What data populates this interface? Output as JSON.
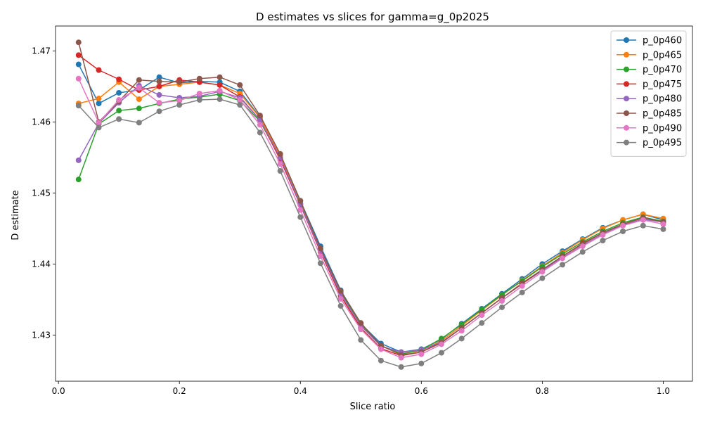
{
  "chart_data": {
    "type": "line",
    "title": "D estimates vs slices for gamma=g_0p2025",
    "xlabel": "Slice ratio",
    "ylabel": "D estimate",
    "xlim": [
      -0.0048,
      1.0483
    ],
    "ylim": [
      1.4235,
      1.4735
    ],
    "xticks": [
      0.0,
      0.2,
      0.4,
      0.6,
      0.8,
      1.0
    ],
    "xtick_labels": [
      "0.0",
      "0.2",
      "0.4",
      "0.6",
      "0.8",
      "1.0"
    ],
    "yticks": [
      1.43,
      1.44,
      1.45,
      1.46,
      1.47
    ],
    "ytick_labels": [
      "1.43",
      "1.44",
      "1.45",
      "1.46",
      "1.47"
    ],
    "grid": false,
    "legend_position": "top-right",
    "marker": "circle",
    "x": [
      0.0333,
      0.0667,
      0.1,
      0.1333,
      0.1667,
      0.2,
      0.2333,
      0.2667,
      0.3,
      0.3333,
      0.3667,
      0.4,
      0.4333,
      0.4667,
      0.5,
      0.5333,
      0.5667,
      0.6,
      0.6333,
      0.6667,
      0.7,
      0.7333,
      0.7667,
      0.8,
      0.8333,
      0.8667,
      0.9,
      0.9333,
      0.9667,
      1.0
    ],
    "series": [
      {
        "name": "p_0p460",
        "color": "#1f77b4",
        "values": [
          1.4681,
          1.4626,
          1.4641,
          1.4645,
          1.4663,
          1.4655,
          1.4657,
          1.4656,
          1.4643,
          1.4607,
          1.4554,
          1.4489,
          1.4425,
          1.4363,
          1.4316,
          1.4288,
          1.4276,
          1.428,
          1.4294,
          1.4316,
          1.4337,
          1.4358,
          1.4379,
          1.44,
          1.4418,
          1.4435,
          1.4451,
          1.4462,
          1.447,
          1.4462
        ]
      },
      {
        "name": "p_0p465",
        "color": "#ff7f0e",
        "values": [
          1.4626,
          1.4633,
          1.4656,
          1.4632,
          1.465,
          1.4653,
          1.4656,
          1.4652,
          1.464,
          1.4606,
          1.4552,
          1.4485,
          1.442,
          1.436,
          1.4314,
          1.4285,
          1.4274,
          1.4278,
          1.4292,
          1.4313,
          1.4335,
          1.4356,
          1.4377,
          1.4397,
          1.4416,
          1.4434,
          1.445,
          1.4462,
          1.447,
          1.4464
        ]
      },
      {
        "name": "p_0p470",
        "color": "#2ca02c",
        "values": [
          1.4519,
          1.4597,
          1.4616,
          1.4619,
          1.4626,
          1.4632,
          1.4635,
          1.4639,
          1.463,
          1.4601,
          1.4549,
          1.4485,
          1.442,
          1.436,
          1.4314,
          1.4285,
          1.4273,
          1.4279,
          1.4295,
          1.4315,
          1.4336,
          1.4357,
          1.4376,
          1.4396,
          1.4414,
          1.4431,
          1.4446,
          1.4458,
          1.4466,
          1.446
        ]
      },
      {
        "name": "p_0p475",
        "color": "#d62728",
        "values": [
          1.4694,
          1.4673,
          1.466,
          1.4645,
          1.465,
          1.4659,
          1.4656,
          1.4652,
          1.4635,
          1.4603,
          1.4547,
          1.4483,
          1.4417,
          1.4355,
          1.431,
          1.4281,
          1.4271,
          1.4276,
          1.429,
          1.431,
          1.4331,
          1.4352,
          1.4373,
          1.4392,
          1.4411,
          1.4429,
          1.4444,
          1.4456,
          1.4465,
          1.4459
        ]
      },
      {
        "name": "p_0p480",
        "color": "#9467bd",
        "values": [
          1.4546,
          1.4598,
          1.4627,
          1.4651,
          1.4638,
          1.4634,
          1.4636,
          1.4643,
          1.4634,
          1.4603,
          1.455,
          1.4484,
          1.4419,
          1.4358,
          1.4313,
          1.4284,
          1.4276,
          1.4279,
          1.429,
          1.431,
          1.4331,
          1.4352,
          1.4372,
          1.4391,
          1.4409,
          1.4426,
          1.4442,
          1.4455,
          1.4463,
          1.4459
        ]
      },
      {
        "name": "p_0p485",
        "color": "#8c564b",
        "values": [
          1.4712,
          1.46,
          1.4629,
          1.4659,
          1.4657,
          1.4656,
          1.4661,
          1.4663,
          1.4652,
          1.4609,
          1.4555,
          1.4489,
          1.4422,
          1.4362,
          1.4317,
          1.4285,
          1.4272,
          1.4276,
          1.4289,
          1.431,
          1.4331,
          1.4352,
          1.4372,
          1.4392,
          1.4411,
          1.4428,
          1.4444,
          1.4456,
          1.4465,
          1.4459
        ]
      },
      {
        "name": "p_0p490",
        "color": "#e377c2",
        "values": [
          1.4661,
          1.4599,
          1.4631,
          1.4648,
          1.4627,
          1.463,
          1.464,
          1.4644,
          1.4631,
          1.4596,
          1.4541,
          1.4476,
          1.4411,
          1.4351,
          1.4308,
          1.428,
          1.4268,
          1.4273,
          1.4287,
          1.4306,
          1.4328,
          1.4348,
          1.4369,
          1.4389,
          1.4408,
          1.4425,
          1.4441,
          1.4454,
          1.4462,
          1.4456
        ]
      },
      {
        "name": "p_0p495",
        "color": "#7f7f7f",
        "values": [
          1.4623,
          1.4592,
          1.4604,
          1.4599,
          1.4615,
          1.4624,
          1.4631,
          1.4632,
          1.4624,
          1.4585,
          1.4531,
          1.4466,
          1.4401,
          1.4341,
          1.4293,
          1.4264,
          1.4255,
          1.426,
          1.4275,
          1.4295,
          1.4317,
          1.4339,
          1.436,
          1.438,
          1.4399,
          1.4417,
          1.4433,
          1.4446,
          1.4454,
          1.4449
        ]
      }
    ]
  }
}
